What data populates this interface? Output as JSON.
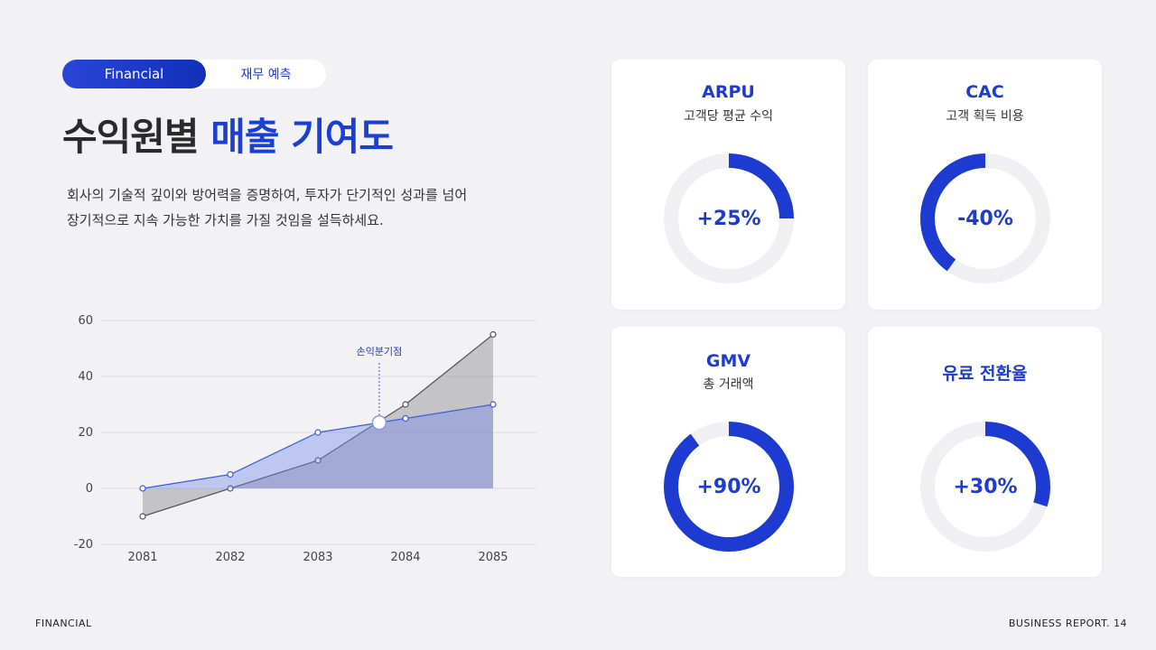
{
  "header": {
    "tag_primary": "Financial",
    "tag_secondary": "재무 예측",
    "title_main": "수익원별",
    "title_accent": "매출 기여도",
    "description_line1": "회사의 기술적 깊이와 방어력을 증명하여, 투자가 단기적인 성과를 넘어",
    "description_line2": "장기적으로 지속 가능한 가치를 가질 것임을 설득하세요."
  },
  "chart_data": {
    "type": "area",
    "categories": [
      "2081",
      "2082",
      "2083",
      "2084",
      "2085"
    ],
    "series": [
      {
        "values": [
          -10,
          0,
          10,
          30,
          55
        ],
        "color": "#555555"
      },
      {
        "values": [
          0,
          5,
          20,
          25,
          30
        ],
        "color": "#3d5be0"
      }
    ],
    "ylim": [
      -20,
      60
    ],
    "yticks": [
      "60",
      "40",
      "20",
      "0",
      "-20"
    ],
    "grid": true,
    "annotation": {
      "label": "손익분기점",
      "x": 2083.7,
      "y": 23.5
    }
  },
  "cards": [
    {
      "title": "ARPU",
      "subtitle": "고객당 평균 수익",
      "value_label": "+25%",
      "fraction": 0.25
    },
    {
      "title": "CAC",
      "subtitle": "고객 획득 비용",
      "value_label": "-40%",
      "fraction": 0.4,
      "direction": "ccw"
    },
    {
      "title": "GMV",
      "subtitle": "총 거래액",
      "value_label": "+90%",
      "fraction": 0.9
    },
    {
      "title": "유료 전환율",
      "subtitle": "",
      "value_label": "+30%",
      "fraction": 0.3
    }
  ],
  "colors": {
    "accent": "#1d3bd0",
    "track": "#f0f0f3",
    "background": "#f2f2f4"
  },
  "footer": {
    "left": "FINANCIAL",
    "right": "BUSINESS REPORT. 14"
  }
}
